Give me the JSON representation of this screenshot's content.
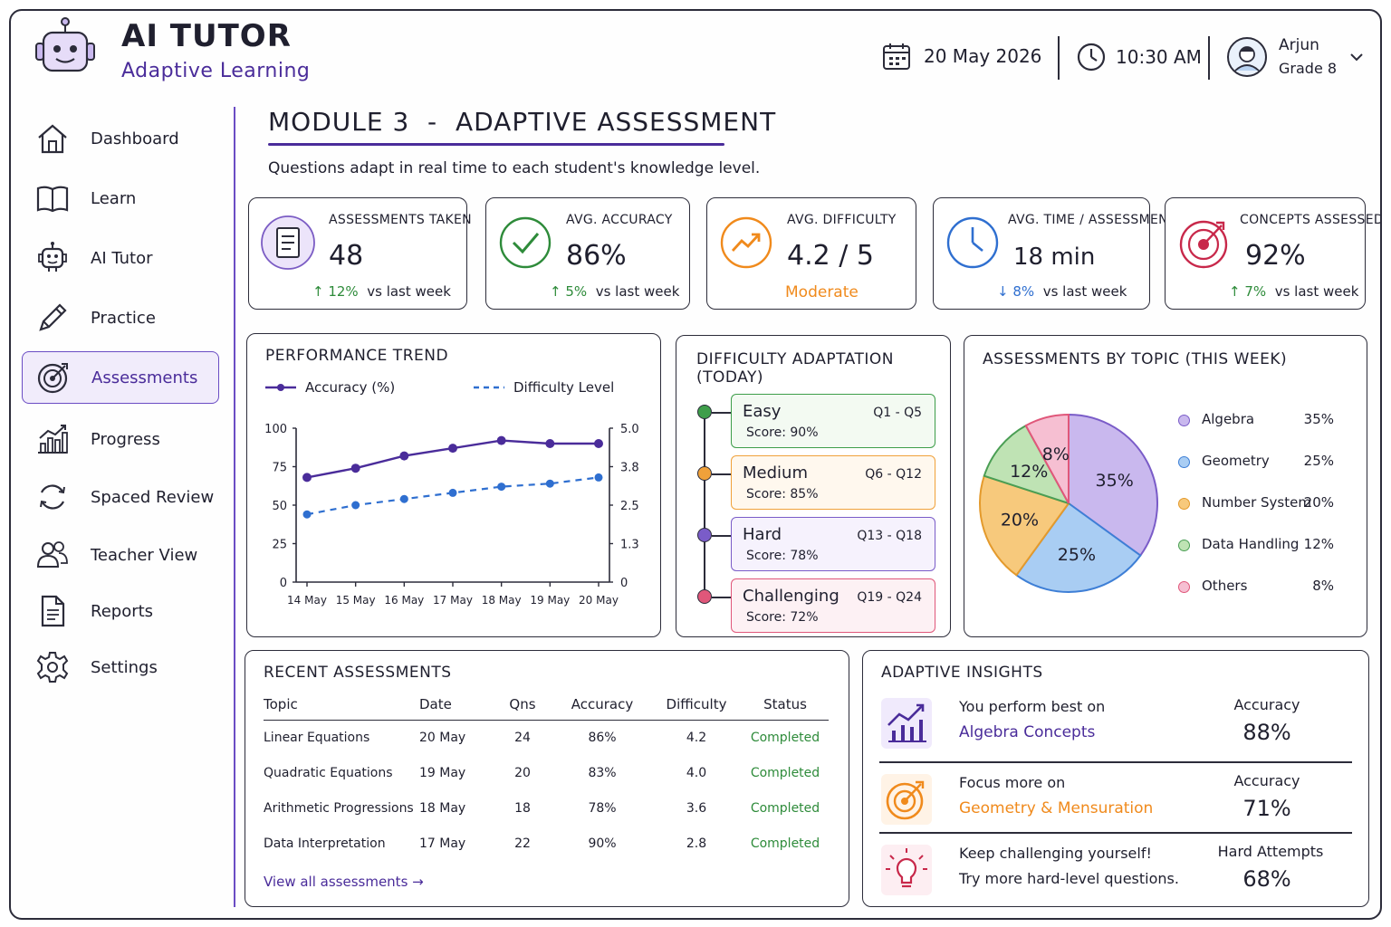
{
  "header": {
    "app_title": "AI TUTOR",
    "app_subtitle": "Adaptive Learning",
    "date": "20 May 2026",
    "time": "10:30 AM",
    "user_name": "Arjun",
    "user_grade": "Grade 8"
  },
  "sidebar": {
    "items": [
      {
        "label": "Dashboard",
        "icon": "home-icon"
      },
      {
        "label": "Learn",
        "icon": "book-icon"
      },
      {
        "label": "AI Tutor",
        "icon": "robot-icon"
      },
      {
        "label": "Practice",
        "icon": "pencil-icon"
      },
      {
        "label": "Assessments",
        "icon": "target-icon",
        "active": true
      },
      {
        "label": "Progress",
        "icon": "bar-chart-icon"
      },
      {
        "label": "Spaced Review",
        "icon": "refresh-icon"
      },
      {
        "label": "Teacher View",
        "icon": "users-icon"
      },
      {
        "label": "Reports",
        "icon": "document-icon"
      },
      {
        "label": "Settings",
        "icon": "gear-icon"
      }
    ]
  },
  "page": {
    "title": "MODULE 3  -  ADAPTIVE ASSESSMENT",
    "subtitle": "Questions adapt in real time to each student's knowledge level."
  },
  "stats": [
    {
      "label": "ASSESSMENTS TAKEN",
      "value": "48",
      "delta": "↑ 12%",
      "delta_suffix": "vs last week",
      "color": "#7b5cc4"
    },
    {
      "label": "AVG. ACCURACY",
      "value": "86%",
      "delta": "↑ 5%",
      "delta_suffix": "vs last week",
      "color": "#2e8b3a"
    },
    {
      "label": "AVG. DIFFICULTY",
      "value": "4.2 / 5",
      "delta": "Moderate",
      "delta_suffix": "",
      "color": "#f08a1c"
    },
    {
      "label": "AVG. TIME / ASSESSMENT",
      "value": "18 min",
      "delta": "↓ 8%",
      "delta_suffix": "vs last week",
      "color": "#2f6fd0"
    },
    {
      "label": "CONCEPTS ASSESSED",
      "value": "92%",
      "delta": "↑ 7%",
      "delta_suffix": "vs last week",
      "color": "#c8284a"
    }
  ],
  "performance": {
    "heading": "PERFORMANCE TREND",
    "legend_accuracy": "Accuracy (%)",
    "legend_difficulty": "Difficulty Level",
    "chart_data": {
      "type": "line",
      "x": [
        "14 May",
        "15 May",
        "16 May",
        "17 May",
        "18 May",
        "19 May",
        "20 May"
      ],
      "series": [
        {
          "name": "Accuracy (%)",
          "axis": "left",
          "values": [
            68,
            74,
            82,
            87,
            92,
            90,
            90
          ]
        },
        {
          "name": "Difficulty Level",
          "axis": "right",
          "values": [
            2.2,
            2.5,
            2.7,
            2.9,
            3.1,
            3.2,
            3.4
          ]
        }
      ],
      "ylim_left": [
        0,
        100
      ],
      "yticks_left": [
        "100",
        "75",
        "50",
        "25",
        "0"
      ],
      "ylim_right": [
        0,
        5.0
      ],
      "yticks_right": [
        "5.0",
        "3.8",
        "2.5",
        "1.3",
        "0"
      ]
    }
  },
  "difficulty": {
    "heading": "DIFFICULTY ADAPTATION (TODAY)",
    "levels": [
      {
        "name": "Easy",
        "range": "Q1 - Q5",
        "score": "Score: 90%",
        "color": "#3e9e4a",
        "bg": "#f3faf2"
      },
      {
        "name": "Medium",
        "range": "Q6 - Q12",
        "score": "Score: 85%",
        "color": "#f0a13a",
        "bg": "#fff8ee"
      },
      {
        "name": "Hard",
        "range": "Q13 - Q18",
        "score": "Score: 78%",
        "color": "#7a5cc8",
        "bg": "#f6f2fd"
      },
      {
        "name": "Challenging",
        "range": "Q19 - Q24",
        "score": "Score: 72%",
        "color": "#e0577a",
        "bg": "#fdf1f4"
      }
    ]
  },
  "topics": {
    "heading": "ASSESSMENTS BY TOPIC (THIS WEEK)",
    "chart_data": {
      "type": "pie",
      "labels": [
        "Algebra",
        "Geometry",
        "Number System",
        "Data Handling",
        "Others"
      ],
      "values": [
        35,
        25,
        20,
        12,
        8
      ],
      "display": [
        "35%",
        "25%",
        "20%",
        "12%",
        "8%"
      ],
      "colors": [
        "#c9b8ee",
        "#a9cdf3",
        "#f7c97c",
        "#bfe3b4",
        "#f6bfd2"
      ],
      "stroke_colors": [
        "#7a5cc8",
        "#3e7fd6",
        "#e49a2c",
        "#4a9e54",
        "#e0577a"
      ]
    }
  },
  "recent": {
    "heading": "RECENT ASSESSMENTS",
    "columns": [
      "Topic",
      "Date",
      "Qns",
      "Accuracy",
      "Difficulty",
      "Status"
    ],
    "rows": [
      {
        "topic": "Linear Equations",
        "date": "20 May",
        "qns": "24",
        "accuracy": "86%",
        "difficulty": "4.2",
        "status": "Completed"
      },
      {
        "topic": "Quadratic Equations",
        "date": "19 May",
        "qns": "20",
        "accuracy": "83%",
        "difficulty": "4.0",
        "status": "Completed"
      },
      {
        "topic": "Arithmetic Progressions",
        "date": "18 May",
        "qns": "18",
        "accuracy": "78%",
        "difficulty": "3.6",
        "status": "Completed"
      },
      {
        "topic": "Data Interpretation",
        "date": "17 May",
        "qns": "22",
        "accuracy": "90%",
        "difficulty": "2.8",
        "status": "Completed"
      }
    ],
    "view_all": "View all assessments →"
  },
  "insights": {
    "heading": "ADAPTIVE INSIGHTS",
    "items": [
      {
        "line1": "You perform best on",
        "line2": "Algebra Concepts",
        "metric_label": "Accuracy",
        "metric_value": "88%",
        "color": "#4a2c9a",
        "icon": "trend-up-icon"
      },
      {
        "line1": "Focus more on",
        "line2": "Geometry & Mensuration",
        "metric_label": "Accuracy",
        "metric_value": "71%",
        "color": "#f08a1c",
        "icon": "target-icon"
      },
      {
        "line1": "Keep challenging yourself!",
        "line2": "Try more hard-level questions.",
        "metric_label": "Hard Attempts",
        "metric_value": "68%",
        "color": "#1f1f2e",
        "icon": "lightbulb-icon"
      }
    ]
  }
}
